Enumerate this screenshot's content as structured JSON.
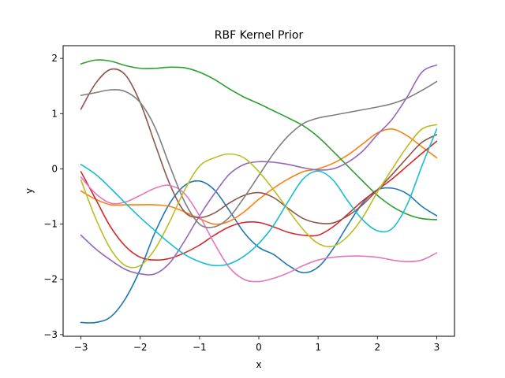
{
  "chart_data": {
    "type": "line",
    "title": "RBF Kernel Prior",
    "xlabel": "x",
    "ylabel": "y",
    "xlim": [
      -3.3,
      3.3
    ],
    "ylim": [
      -3.03,
      2.23
    ],
    "xticks": [
      -3,
      -2,
      -1,
      0,
      1,
      2,
      3
    ],
    "yticks": [
      -3,
      -2,
      -1,
      0,
      1,
      2
    ],
    "xtick_labels": [
      "−3",
      "−2",
      "−1",
      "0",
      "1",
      "2",
      "3"
    ],
    "ytick_labels": [
      "−3",
      "−2",
      "−1",
      "0",
      "1",
      "2"
    ],
    "grid": false,
    "legend": false,
    "x": [
      -3.0,
      -2.75,
      -2.5,
      -2.25,
      -2.0,
      -1.75,
      -1.5,
      -1.25,
      -1.0,
      -0.75,
      -0.5,
      -0.25,
      0.0,
      0.25,
      0.5,
      0.75,
      1.0,
      1.25,
      1.5,
      1.75,
      2.0,
      2.25,
      2.5,
      2.75,
      3.0
    ],
    "series": [
      {
        "color": "#1f77b4",
        "values": [
          -2.78,
          -2.78,
          -2.68,
          -2.35,
          -1.82,
          -1.15,
          -0.62,
          -0.3,
          -0.22,
          -0.38,
          -0.75,
          -1.15,
          -1.42,
          -1.55,
          -1.75,
          -1.88,
          -1.78,
          -1.45,
          -1.02,
          -0.62,
          -0.38,
          -0.35,
          -0.45,
          -0.68,
          -0.85
        ]
      },
      {
        "color": "#ff7f0e",
        "values": [
          -0.4,
          -0.55,
          -0.65,
          -0.65,
          -0.65,
          -0.65,
          -0.68,
          -0.78,
          -0.9,
          -1.0,
          -0.95,
          -0.78,
          -0.55,
          -0.35,
          -0.18,
          -0.05,
          0.0,
          0.1,
          0.25,
          0.45,
          0.65,
          0.72,
          0.6,
          0.4,
          0.2
        ]
      },
      {
        "color": "#2ca02c",
        "values": [
          1.9,
          1.97,
          1.95,
          1.87,
          1.82,
          1.82,
          1.84,
          1.83,
          1.75,
          1.62,
          1.45,
          1.3,
          1.18,
          1.05,
          0.92,
          0.78,
          0.58,
          0.32,
          0.05,
          -0.22,
          -0.48,
          -0.68,
          -0.82,
          -0.9,
          -0.92
        ]
      },
      {
        "color": "#d62728",
        "values": [
          -0.05,
          -0.55,
          -1.05,
          -1.4,
          -1.6,
          -1.65,
          -1.62,
          -1.52,
          -1.38,
          -1.2,
          -1.05,
          -0.97,
          -0.97,
          -1.05,
          -1.15,
          -1.2,
          -1.2,
          -1.05,
          -0.82,
          -0.58,
          -0.38,
          -0.18,
          0.05,
          0.28,
          0.5
        ]
      },
      {
        "color": "#9467bd",
        "values": [
          -1.2,
          -1.45,
          -1.65,
          -1.82,
          -1.9,
          -1.9,
          -1.7,
          -1.3,
          -0.85,
          -0.45,
          -0.1,
          0.08,
          0.13,
          0.12,
          0.08,
          0.02,
          -0.02,
          0.0,
          0.12,
          0.32,
          0.62,
          0.9,
          1.3,
          1.75,
          1.88
        ]
      },
      {
        "color": "#8c564b",
        "values": [
          1.08,
          1.55,
          1.8,
          1.7,
          1.2,
          0.45,
          -0.28,
          -0.78,
          -0.88,
          -0.8,
          -0.62,
          -0.48,
          -0.43,
          -0.52,
          -0.72,
          -0.9,
          -0.98,
          -0.98,
          -0.85,
          -0.65,
          -0.38,
          -0.1,
          0.2,
          0.48,
          0.62
        ]
      },
      {
        "color": "#e377c2",
        "values": [
          -0.15,
          -0.45,
          -0.62,
          -0.6,
          -0.48,
          -0.35,
          -0.3,
          -0.45,
          -0.85,
          -1.35,
          -1.78,
          -2.0,
          -2.04,
          -1.98,
          -1.88,
          -1.75,
          -1.65,
          -1.6,
          -1.58,
          -1.58,
          -1.6,
          -1.65,
          -1.68,
          -1.65,
          -1.52
        ]
      },
      {
        "color": "#7f7f7f",
        "values": [
          1.33,
          1.38,
          1.43,
          1.4,
          1.2,
          0.75,
          0.05,
          -0.6,
          -1.0,
          -1.05,
          -0.88,
          -0.52,
          -0.12,
          0.28,
          0.6,
          0.82,
          0.92,
          0.97,
          1.02,
          1.07,
          1.12,
          1.18,
          1.28,
          1.42,
          1.58
        ]
      },
      {
        "color": "#bcbd22",
        "values": [
          -0.2,
          -0.9,
          -1.45,
          -1.75,
          -1.75,
          -1.45,
          -0.95,
          -0.38,
          0.05,
          0.2,
          0.27,
          0.2,
          -0.05,
          -0.38,
          -0.75,
          -1.1,
          -1.35,
          -1.4,
          -1.22,
          -0.88,
          -0.42,
          0.0,
          0.4,
          0.72,
          0.8
        ]
      },
      {
        "color": "#17becf",
        "values": [
          0.08,
          -0.1,
          -0.35,
          -0.62,
          -0.88,
          -1.12,
          -1.35,
          -1.55,
          -1.68,
          -1.75,
          -1.72,
          -1.58,
          -1.35,
          -1.02,
          -0.58,
          -0.18,
          -0.04,
          -0.2,
          -0.58,
          -0.92,
          -1.12,
          -1.08,
          -0.65,
          0.05,
          0.72
        ]
      }
    ]
  }
}
